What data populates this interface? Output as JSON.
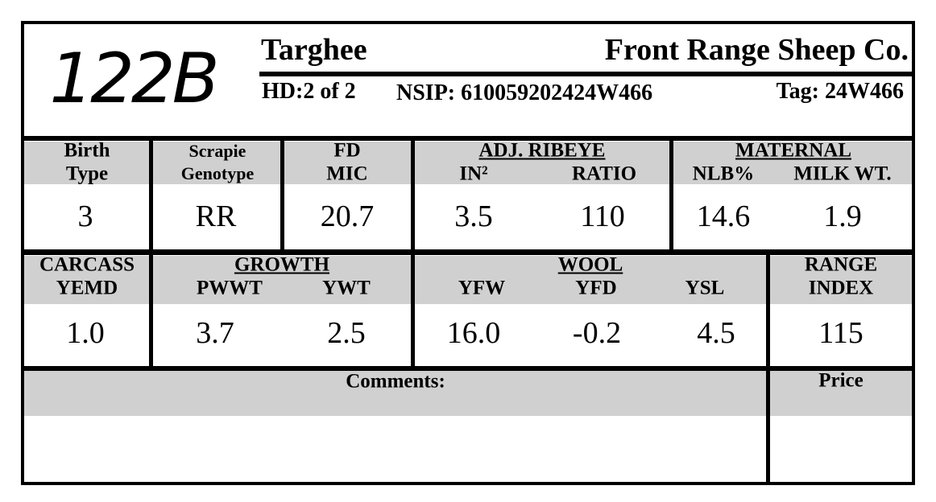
{
  "lot_number": "122B",
  "header": {
    "breed": "Targhee",
    "farm": "Front Range Sheep Co.",
    "hd": "HD:2 of 2",
    "nsip": "NSIP: 610059202424W466",
    "tag": "Tag: 24W466"
  },
  "row1": {
    "birth_type": {
      "label": [
        "Birth",
        "Type"
      ],
      "value": "3"
    },
    "scrapie_genotype": {
      "label": [
        "Scrapie",
        "Genotype"
      ],
      "value": "RR"
    },
    "fd_mic": {
      "label": [
        "FD",
        "MIC"
      ],
      "value": "20.7"
    },
    "adj_ribeye": {
      "title": "ADJ. RIBEYE",
      "columns": [
        {
          "label": "IN²",
          "value": "3.5"
        },
        {
          "label": "RATIO",
          "value": "110"
        }
      ]
    },
    "maternal": {
      "title": "MATERNAL",
      "columns": [
        {
          "label": "NLB%",
          "value": "14.6"
        },
        {
          "label": "MILK WT.",
          "value": "1.9"
        }
      ]
    }
  },
  "row2": {
    "carcass_yemd": {
      "label": [
        "CARCASS",
        "YEMD"
      ],
      "value": "1.0"
    },
    "growth": {
      "title": "GROWTH",
      "columns": [
        {
          "label": "PWWT",
          "value": "3.7"
        },
        {
          "label": "YWT",
          "value": "2.5"
        }
      ]
    },
    "wool": {
      "title": "WOOL",
      "columns": [
        {
          "label": "YFW",
          "value": "16.0"
        },
        {
          "label": "YFD",
          "value": "-0.2"
        },
        {
          "label": "YSL",
          "value": "4.5"
        }
      ]
    },
    "range_index": {
      "label": [
        "RANGE",
        "INDEX"
      ],
      "value": "115"
    }
  },
  "footer": {
    "comments": "Comments:",
    "price": "Price"
  }
}
